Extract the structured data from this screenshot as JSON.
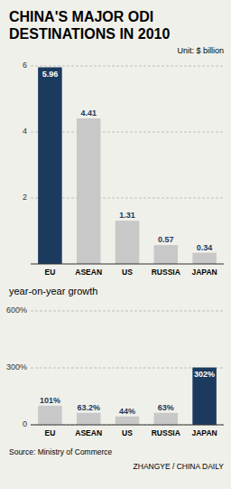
{
  "chart_data": [
    {
      "type": "bar",
      "title": "CHINA'S MAJOR ODI DESTINATIONS IN 2010",
      "ylabel": "Unit: $ billion",
      "categories": [
        "EU",
        "ASEAN",
        "US",
        "RUSSIA",
        "JAPAN"
      ],
      "values": [
        5.96,
        4.41,
        1.31,
        0.57,
        0.34
      ],
      "colors": [
        "#1b3a5e",
        "#c8c8c8",
        "#c8c8c8",
        "#c8c8c8",
        "#c8c8c8"
      ],
      "ylim": [
        0,
        6
      ],
      "yticks": [
        2,
        4,
        6
      ],
      "grid": true,
      "data_labels": true
    },
    {
      "type": "bar",
      "title": "year-on-year growth",
      "categories": [
        "EU",
        "ASEAN",
        "US",
        "RUSSIA",
        "JAPAN"
      ],
      "values": [
        101,
        63.2,
        44,
        63,
        302
      ],
      "value_labels": [
        "101%",
        "63.2%",
        "44%",
        "63%",
        "302%"
      ],
      "colors": [
        "#c8c8c8",
        "#c8c8c8",
        "#c8c8c8",
        "#c8c8c8",
        "#1b3a5e"
      ],
      "ylim": [
        0,
        600
      ],
      "yticks": [
        0,
        {
          "value": 300,
          "label": "300%"
        },
        {
          "value": 600,
          "label": "600%"
        }
      ],
      "grid": true,
      "data_labels": true,
      "annotations": [
        "Source: Ministry of Commerce",
        "ZHANGYE / CHINA DAILY"
      ]
    }
  ]
}
